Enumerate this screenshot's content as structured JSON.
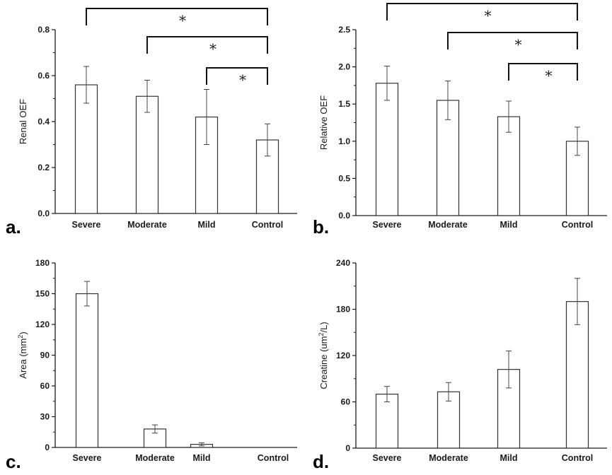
{
  "colors": {
    "ink": "#1a1a1a",
    "bar_fill": "#ffffff",
    "bar_stroke": "#333333",
    "background": "#ffffff"
  },
  "chart_data": [
    {
      "panel": "a.",
      "type": "bar",
      "categories": [
        "Severe",
        "Moderate",
        "Mild",
        "Control"
      ],
      "values": [
        0.56,
        0.51,
        0.42,
        0.32
      ],
      "errors": [
        0.08,
        0.07,
        0.12,
        0.07
      ],
      "ylabel": "Renal OEF",
      "ylim": [
        0,
        0.8
      ],
      "yticks": [
        0.0,
        0.2,
        0.4,
        0.6,
        0.8
      ],
      "tick_labels": [
        "0.0",
        "0.2",
        "0.4",
        "0.6",
        "0.8"
      ],
      "significance": [
        {
          "from": "Severe",
          "to": "Control",
          "label": "*"
        },
        {
          "from": "Moderate",
          "to": "Control",
          "label": "*"
        },
        {
          "from": "Mild",
          "to": "Control",
          "label": "*"
        }
      ]
    },
    {
      "panel": "b.",
      "type": "bar",
      "categories": [
        "Severe",
        "Moderate",
        "Mild",
        "Control"
      ],
      "values": [
        1.78,
        1.55,
        1.33,
        1.0
      ],
      "errors": [
        0.23,
        0.26,
        0.21,
        0.19
      ],
      "ylabel": "Relative OEF",
      "ylim": [
        0,
        2.5
      ],
      "yticks": [
        0.0,
        0.5,
        1.0,
        1.5,
        2.0,
        2.5
      ],
      "tick_labels": [
        "0.0",
        "0.5",
        "1.0",
        "1.5",
        "2.0",
        "2.5"
      ],
      "significance": [
        {
          "from": "Severe",
          "to": "Control",
          "label": "*"
        },
        {
          "from": "Moderate",
          "to": "Control",
          "label": "*"
        },
        {
          "from": "Mild",
          "to": "Control",
          "label": "*"
        }
      ]
    },
    {
      "panel": "c.",
      "type": "bar",
      "categories": [
        "Severe",
        "Moderate",
        "Mild",
        "Control"
      ],
      "values": [
        150,
        18,
        3,
        0
      ],
      "errors": [
        12,
        4,
        1.5,
        0
      ],
      "ylabel": "Area (mm",
      "ylabel_sup": "2",
      "ylabel_end": ")",
      "ylim": [
        0,
        180
      ],
      "yticks": [
        0,
        30,
        60,
        90,
        120,
        150,
        180
      ],
      "tick_labels": [
        "0",
        "30",
        "60",
        "90",
        "120",
        "150",
        "180"
      ],
      "significance": []
    },
    {
      "panel": "d.",
      "type": "bar",
      "categories": [
        "Severe",
        "Moderate",
        "Mild",
        "Control"
      ],
      "values": [
        70,
        73,
        102,
        190
      ],
      "errors": [
        10,
        12,
        24,
        30
      ],
      "ylabel": "Creatine (um",
      "ylabel_sup": "2",
      "ylabel_end": "/L)",
      "ylim": [
        0,
        240
      ],
      "yticks": [
        0,
        60,
        120,
        180,
        240
      ],
      "tick_labels": [
        "0",
        "60",
        "120",
        "180",
        "240"
      ],
      "significance": []
    }
  ]
}
